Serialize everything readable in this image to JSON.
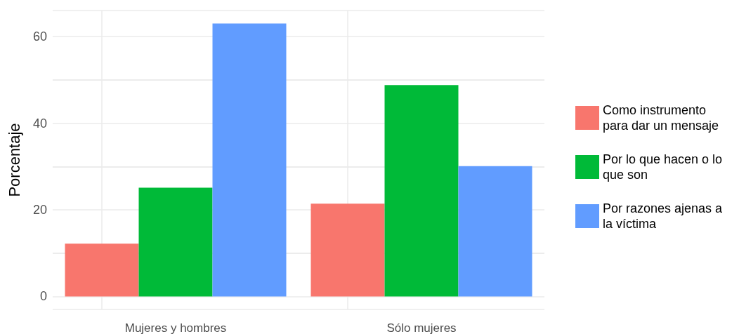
{
  "chart_data": {
    "type": "bar",
    "ylabel": "Porcentaje",
    "categories": [
      "Mujeres y hombres",
      "Sólo mujeres"
    ],
    "series": [
      {
        "name": "Como instrumento para dar un mensaje",
        "color": "#f8766d",
        "values": [
          12.2,
          21.4
        ]
      },
      {
        "name": "Por lo que hacen o lo que son",
        "color": "#00ba38",
        "values": [
          25.1,
          48.8
        ]
      },
      {
        "name": "Por razones ajenas a la víctima",
        "color": "#619cff",
        "values": [
          63.0,
          30.1
        ]
      }
    ],
    "ylim": [
      -3,
      66
    ],
    "yticks": [
      0,
      20,
      40,
      60
    ],
    "grid": true,
    "legend": "right"
  }
}
